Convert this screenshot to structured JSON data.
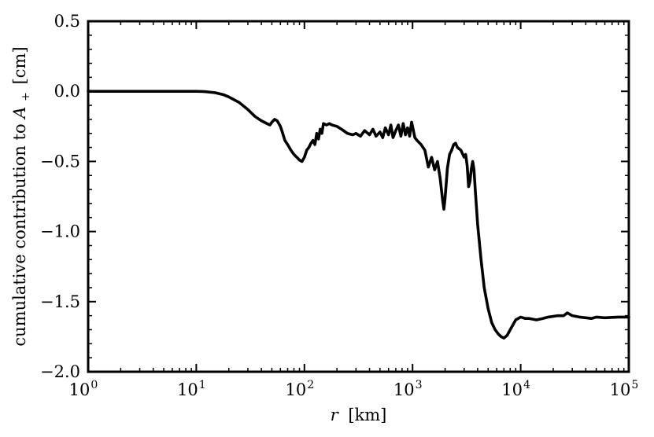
{
  "chart_data": {
    "type": "line",
    "title": "",
    "xlabel_var": "r",
    "xlabel_unit": "[km]",
    "ylabel_text": "cumulative contribution to ",
    "ylabel_var": "A",
    "ylabel_sub": "+",
    "ylabel_unit": "[cm]",
    "xscale": "log",
    "xlim": [
      1,
      100000
    ],
    "ylim": [
      -2.0,
      0.5
    ],
    "grid": false,
    "legend": "none",
    "line_color": "#000000",
    "x_ticks": [
      {
        "value": 1,
        "base": "10",
        "exp": "0"
      },
      {
        "value": 10,
        "base": "10",
        "exp": "1"
      },
      {
        "value": 100,
        "base": "10",
        "exp": "2"
      },
      {
        "value": 1000,
        "base": "10",
        "exp": "3"
      },
      {
        "value": 10000,
        "base": "10",
        "exp": "4"
      },
      {
        "value": 100000,
        "base": "10",
        "exp": "5"
      }
    ],
    "y_ticks": [
      {
        "value": 0.5,
        "label": "0.5"
      },
      {
        "value": 0.0,
        "label": "0.0"
      },
      {
        "value": -0.5,
        "label": "−0.5"
      },
      {
        "value": -1.0,
        "label": "−1.0"
      },
      {
        "value": -1.5,
        "label": "−1.5"
      },
      {
        "value": -2.0,
        "label": "−2.0"
      }
    ],
    "series": [
      {
        "x": [
          1,
          10,
          12,
          15,
          18,
          20,
          25,
          30,
          35,
          40,
          45,
          48,
          50,
          53,
          56,
          60,
          63,
          66,
          70,
          75,
          80,
          85,
          90,
          95,
          100,
          105,
          110,
          115,
          120,
          125,
          130,
          135,
          140,
          145,
          150,
          160,
          170,
          180,
          200,
          220,
          250,
          280,
          300,
          330,
          360,
          400,
          430,
          460,
          500,
          530,
          560,
          600,
          630,
          660,
          700,
          740,
          780,
          820,
          860,
          900,
          940,
          980,
          1000,
          1050,
          1100,
          1200,
          1300,
          1400,
          1500,
          1600,
          1700,
          1800,
          1900,
          1950,
          2000,
          2100,
          2200,
          2300,
          2400,
          2500,
          2600,
          2800,
          3000,
          3100,
          3200,
          3300,
          3400,
          3500,
          3600,
          3700,
          3800,
          4000,
          4300,
          4600,
          5000,
          5400,
          5800,
          6200,
          6600,
          7000,
          7500,
          8000,
          9000,
          10000,
          11000,
          12000,
          14000,
          16000,
          18000,
          20000,
          22000,
          25000,
          27000,
          30000,
          35000,
          40000,
          45000,
          50000,
          60000,
          80000,
          100000
        ],
        "y": [
          0.0,
          0.0,
          -0.002,
          -0.01,
          -0.025,
          -0.04,
          -0.08,
          -0.13,
          -0.18,
          -0.21,
          -0.23,
          -0.24,
          -0.22,
          -0.2,
          -0.21,
          -0.25,
          -0.3,
          -0.35,
          -0.38,
          -0.42,
          -0.45,
          -0.47,
          -0.49,
          -0.5,
          -0.47,
          -0.42,
          -0.4,
          -0.37,
          -0.35,
          -0.38,
          -0.3,
          -0.34,
          -0.27,
          -0.3,
          -0.23,
          -0.24,
          -0.23,
          -0.24,
          -0.25,
          -0.27,
          -0.3,
          -0.31,
          -0.3,
          -0.32,
          -0.28,
          -0.31,
          -0.27,
          -0.32,
          -0.29,
          -0.33,
          -0.26,
          -0.31,
          -0.24,
          -0.33,
          -0.28,
          -0.24,
          -0.32,
          -0.23,
          -0.31,
          -0.26,
          -0.32,
          -0.22,
          -0.25,
          -0.33,
          -0.35,
          -0.38,
          -0.42,
          -0.54,
          -0.47,
          -0.56,
          -0.5,
          -0.62,
          -0.78,
          -0.84,
          -0.76,
          -0.55,
          -0.45,
          -0.42,
          -0.38,
          -0.37,
          -0.4,
          -0.42,
          -0.47,
          -0.45,
          -0.53,
          -0.68,
          -0.64,
          -0.55,
          -0.5,
          -0.56,
          -0.7,
          -0.95,
          -1.2,
          -1.4,
          -1.55,
          -1.65,
          -1.7,
          -1.73,
          -1.75,
          -1.76,
          -1.74,
          -1.7,
          -1.63,
          -1.61,
          -1.62,
          -1.62,
          -1.63,
          -1.62,
          -1.61,
          -1.605,
          -1.6,
          -1.6,
          -1.58,
          -1.6,
          -1.61,
          -1.615,
          -1.62,
          -1.61,
          -1.615,
          -1.61,
          -1.61
        ]
      }
    ]
  }
}
